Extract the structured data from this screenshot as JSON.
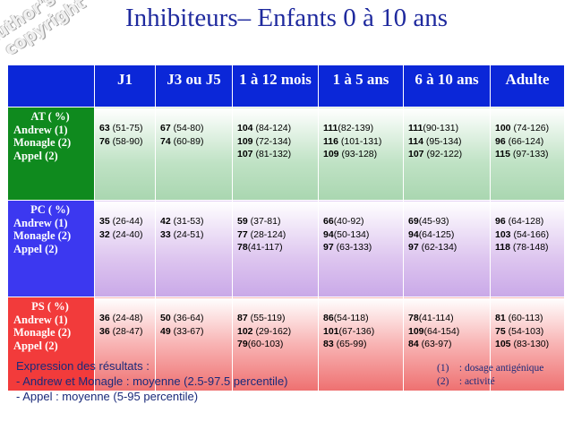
{
  "watermark": {
    "line1": "Author's",
    "line2": "copyright ©"
  },
  "title": "Inhibiteurs– Enfants 0 à 10 ans",
  "table": {
    "columns": [
      "J1",
      "J3 ou J5",
      "1 à 12 mois",
      "1 à 5 ans",
      "6 à 10 ans",
      "Adulte"
    ],
    "rows": [
      {
        "label": "AT ( %)",
        "sources": [
          "Andrew (1)",
          "Monagle (2)",
          "Appel (2)"
        ],
        "cells": [
          [
            [
              "63",
              " (51-75)"
            ],
            [
              "76",
              " (58-90)"
            ]
          ],
          [
            [
              "67",
              " (54-80)"
            ],
            [
              "74",
              " (60-89)"
            ]
          ],
          [
            [
              "104",
              " (84-124)"
            ],
            [
              "109",
              " (72-134)"
            ],
            [
              "107",
              " (81-132)"
            ]
          ],
          [
            [
              "111",
              "(82-139)"
            ],
            [
              "116",
              " (101-131)"
            ],
            [
              "109",
              " (93-128)"
            ]
          ],
          [
            [
              "111",
              "(90-131)"
            ],
            [
              "114",
              " (95-134)"
            ],
            [
              "107",
              " (92-122)"
            ]
          ],
          [
            [
              "100",
              " (74-126)"
            ],
            [
              "96",
              " (66-124)"
            ],
            [
              "115",
              " (97-133)"
            ]
          ]
        ]
      },
      {
        "label": "PC ( %)",
        "sources": [
          "Andrew (1)",
          "Monagle (2)",
          "Appel (2)"
        ],
        "cells": [
          [
            [
              "35",
              " (26-44)"
            ],
            [
              "32",
              " (24-40)"
            ]
          ],
          [
            [
              "42",
              " (31-53)"
            ],
            [
              "33",
              " (24-51)"
            ]
          ],
          [
            [
              "59",
              " (37-81)"
            ],
            [
              "77",
              " (28-124)"
            ],
            [
              "78",
              "(41-117)"
            ]
          ],
          [
            [
              "66",
              "(40-92)"
            ],
            [
              "94",
              "(50-134)"
            ],
            [
              "97",
              " (63-133)"
            ]
          ],
          [
            [
              "69",
              "(45-93)"
            ],
            [
              "94",
              "(64-125)"
            ],
            [
              "97",
              " (62-134)"
            ]
          ],
          [
            [
              "96",
              " (64-128)"
            ],
            [
              "103",
              " (54-166)"
            ],
            [
              "118",
              " (78-148)"
            ]
          ]
        ]
      },
      {
        "label": "PS ( %)",
        "sources": [
          "Andrew  (1)",
          "Monagle  (2)",
          "Appel  (2)"
        ],
        "cells": [
          [
            [
              "36",
              " (24-48)"
            ],
            [
              "36",
              " (28-47)"
            ]
          ],
          [
            [
              "50",
              " (36-64)"
            ],
            [
              "49",
              " (33-67)"
            ]
          ],
          [
            [
              "87",
              " (55-119)"
            ],
            [
              "102",
              " (29-162)"
            ],
            [
              "79",
              "(60-103)"
            ]
          ],
          [
            [
              "86",
              "(54-118)"
            ],
            [
              "101",
              "(67-136)"
            ],
            [
              "83",
              " (65-99)"
            ]
          ],
          [
            [
              "78",
              "(41-114)"
            ],
            [
              "109",
              "(64-154)"
            ],
            [
              "84",
              " (63-97)"
            ]
          ],
          [
            [
              "81",
              " (60-113)"
            ],
            [
              "75",
              " (54-103)"
            ],
            [
              "105",
              " (83-130)"
            ]
          ]
        ]
      }
    ]
  },
  "notes": {
    "heading": "Expression des résultats :",
    "line1": "- Andrew et Monagle : moyenne (2.5-97.5 percentile)",
    "line2": "- Appel : moyenne (5-95 percentile)"
  },
  "legend": [
    {
      "num": "(1)",
      "text": ": dosage antigénique"
    },
    {
      "num": "(2)",
      "text": ": activité"
    }
  ],
  "colors": {
    "title": "#1f2a9e",
    "header": "#0b27d8",
    "at_label": "#0f8a1e",
    "pc_label": "#3c38f0",
    "ps_label": "#f23b3b"
  }
}
